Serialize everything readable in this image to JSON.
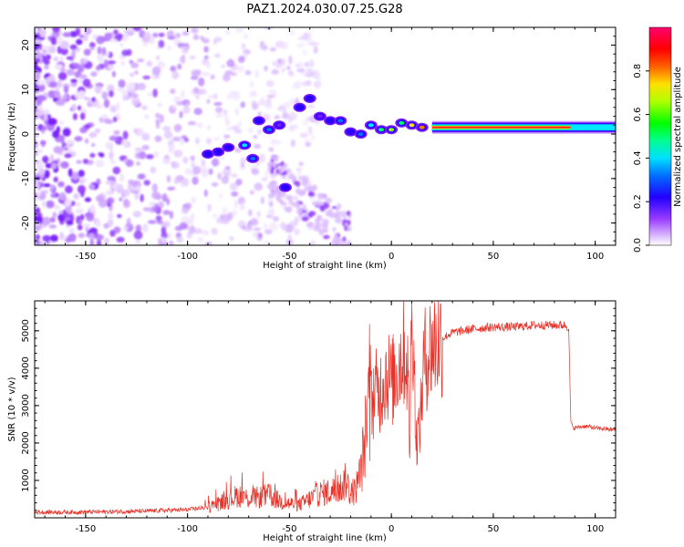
{
  "title": "PAZ1.2024.030.07.25.G28",
  "chart_data": [
    {
      "type": "heatmap",
      "xlabel": "Height of straight line (km)",
      "ylabel": "Frequency (Hz)",
      "xlim": [
        -175,
        110
      ],
      "ylim": [
        -25,
        24
      ],
      "xticks": [
        -150,
        -100,
        -50,
        0,
        50,
        100
      ],
      "yticks": [
        -20,
        -10,
        0,
        10,
        20
      ],
      "colorbar": {
        "label": "Normalized spectral amplitude",
        "range": [
          0,
          1
        ],
        "ticks": [
          "0.0",
          "0.2",
          "0.4",
          "0.6",
          "0.8"
        ],
        "colormap": "hsv-like"
      },
      "signal_trace": [
        {
          "height": -90,
          "freq": -4.5,
          "amp": 0.25
        },
        {
          "height": -85,
          "freq": -4.0,
          "amp": 0.3
        },
        {
          "height": -80,
          "freq": -3.0,
          "amp": 0.25
        },
        {
          "height": -72,
          "freq": -2.5,
          "amp": 0.45
        },
        {
          "height": -68,
          "freq": -5.5,
          "amp": 0.35
        },
        {
          "height": -65,
          "freq": 3.0,
          "amp": 0.3
        },
        {
          "height": -60,
          "freq": 1.0,
          "amp": 0.4
        },
        {
          "height": -55,
          "freq": 2.0,
          "amp": 0.2
        },
        {
          "height": -52,
          "freq": -12.0,
          "amp": 0.25
        },
        {
          "height": -45,
          "freq": 6.0,
          "amp": 0.3
        },
        {
          "height": -40,
          "freq": 8.0,
          "amp": 0.25
        },
        {
          "height": -35,
          "freq": 4.0,
          "amp": 0.2
        },
        {
          "height": -30,
          "freq": 3.0,
          "amp": 0.3
        },
        {
          "height": -25,
          "freq": 3.0,
          "amp": 0.35
        },
        {
          "height": -20,
          "freq": 0.5,
          "amp": 0.25
        },
        {
          "height": -15,
          "freq": 0.0,
          "amp": 0.35
        },
        {
          "height": -10,
          "freq": 2.0,
          "amp": 0.45
        },
        {
          "height": -5,
          "freq": 1.0,
          "amp": 0.6
        },
        {
          "height": 0,
          "freq": 1.0,
          "amp": 0.7
        },
        {
          "height": 5,
          "freq": 2.5,
          "amp": 0.55
        },
        {
          "height": 10,
          "freq": 2.0,
          "amp": 0.75
        },
        {
          "height": 15,
          "freq": 1.5,
          "amp": 0.85
        },
        {
          "height": 20,
          "freq": 1.5,
          "amp": 0.9
        },
        {
          "height": 30,
          "freq": 1.5,
          "amp": 0.95
        },
        {
          "height": 50,
          "freq": 1.5,
          "amp": 1.0
        },
        {
          "height": 70,
          "freq": 1.5,
          "amp": 1.0
        },
        {
          "height": 85,
          "freq": 1.5,
          "amp": 1.0
        },
        {
          "height": 90,
          "freq": 1.5,
          "amp": 0.6
        },
        {
          "height": 110,
          "freq": 1.5,
          "amp": 0.55
        }
      ]
    },
    {
      "type": "line",
      "xlabel": "Height of straight line (km)",
      "ylabel": "SNR (10 * v/v)",
      "xlim": [
        -175,
        110
      ],
      "ylim": [
        0,
        5800
      ],
      "xticks": [
        -150,
        -100,
        -50,
        0,
        50,
        100
      ],
      "yticks": [
        1000,
        2000,
        3000,
        4000,
        5000
      ],
      "series": [
        {
          "color": "#e8332a",
          "x": [
            -175,
            -160,
            -140,
            -120,
            -100,
            -90,
            -85,
            -80,
            -75,
            -70,
            -65,
            -60,
            -55,
            -50,
            -45,
            -40,
            -35,
            -30,
            -25,
            -22,
            -20,
            -18,
            -15,
            -12,
            -10,
            -8,
            -6,
            -4,
            -2,
            0,
            2,
            4,
            6,
            8,
            9,
            10,
            11,
            12,
            14,
            16,
            18,
            20,
            25,
            30,
            40,
            50,
            60,
            70,
            80,
            85,
            87,
            88,
            89,
            95,
            100,
            110
          ],
          "y": [
            150,
            150,
            160,
            180,
            220,
            280,
            380,
            500,
            600,
            520,
            550,
            600,
            450,
            380,
            350,
            500,
            650,
            700,
            800,
            1000,
            600,
            700,
            1200,
            2500,
            3000,
            3400,
            3300,
            3700,
            3900,
            3600,
            3800,
            4200,
            4500,
            4000,
            1800,
            5700,
            4800,
            2000,
            2500,
            4200,
            4400,
            4600,
            4800,
            4950,
            5050,
            5100,
            5100,
            5150,
            5150,
            5150,
            5100,
            2600,
            2400,
            2450,
            2400,
            2350
          ]
        }
      ]
    }
  ]
}
